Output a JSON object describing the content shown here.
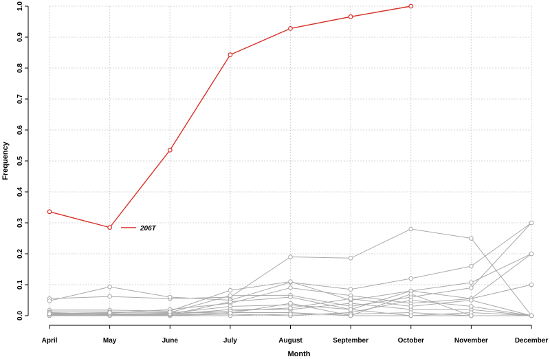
{
  "chart_data": {
    "type": "line",
    "title": "",
    "xlabel": "Month",
    "ylabel": "Frequency",
    "categories": [
      "April",
      "May",
      "June",
      "July",
      "August",
      "September",
      "October",
      "November",
      "December"
    ],
    "ylim": [
      0,
      1
    ],
    "yticks": [
      "0.0",
      "0.1",
      "0.2",
      "0.3",
      "0.4",
      "0.5",
      "0.6",
      "0.7",
      "0.8",
      "0.9",
      "1.0"
    ],
    "grid": true,
    "highlight_color": "#d73027",
    "background_color": "#a9a9a9",
    "legend": {
      "position": "inside-left",
      "entries": [
        "206T"
      ]
    },
    "series": [
      {
        "name": "206T",
        "highlight": true,
        "values": [
          0.336,
          0.285,
          0.535,
          0.843,
          0.928,
          0.966,
          1.0,
          null,
          null
        ]
      },
      {
        "values": [
          0.055,
          0.062,
          0.055,
          0.06,
          0.19,
          0.186,
          0.28,
          0.25,
          0.0
        ]
      },
      {
        "values": [
          0.048,
          0.093,
          0.06,
          0.05,
          0.108,
          0.085,
          0.12,
          0.16,
          0.3
        ]
      },
      {
        "values": [
          0.018,
          0.018,
          0.015,
          0.082,
          0.11,
          0.05,
          0.08,
          0.107,
          0.2
        ]
      },
      {
        "values": [
          0.012,
          0.012,
          0.01,
          0.065,
          0.066,
          0.03,
          0.06,
          0.09,
          0.3
        ]
      },
      {
        "values": [
          0.008,
          0.008,
          0.02,
          0.04,
          0.09,
          0.065,
          0.04,
          0.055,
          0.1
        ]
      },
      {
        "values": [
          0.005,
          0.005,
          0.008,
          0.03,
          0.035,
          0.02,
          0.08,
          0.055,
          0.2
        ]
      },
      {
        "values": [
          0.003,
          0.002,
          0.004,
          0.02,
          0.02,
          0.04,
          0.02,
          0.02,
          0.0
        ]
      },
      {
        "values": [
          0.002,
          0.001,
          0.002,
          0.01,
          0.01,
          0.0,
          0.0,
          0.0,
          0.0
        ]
      },
      {
        "values": [
          0.001,
          0.003,
          0.001,
          0.005,
          0.0,
          0.01,
          0.05,
          0.03,
          0.0
        ]
      },
      {
        "values": [
          0.0,
          0.0,
          0.0,
          0.0,
          0.005,
          0.005,
          0.01,
          0.0,
          0.0
        ]
      },
      {
        "values": [
          0.01,
          0.004,
          0.003,
          0.045,
          0.06,
          0.02,
          0.0,
          0.01,
          0.0
        ]
      },
      {
        "values": [
          0.004,
          0.006,
          0.006,
          0.015,
          0.025,
          0.055,
          0.03,
          0.05,
          0.0
        ]
      },
      {
        "values": [
          0.006,
          0.01,
          0.012,
          0.008,
          0.04,
          0.0,
          0.07,
          0.0,
          0.0
        ]
      }
    ]
  }
}
